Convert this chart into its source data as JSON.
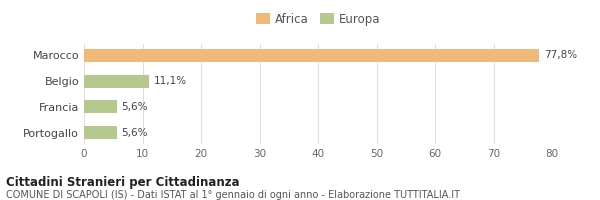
{
  "categories": [
    "Portogallo",
    "Francia",
    "Belgio",
    "Marocco"
  ],
  "values": [
    5.6,
    5.6,
    11.1,
    77.8
  ],
  "colors": [
    "#b5c98e",
    "#b5c98e",
    "#b5c98e",
    "#f0b97a"
  ],
  "labels": [
    "5,6%",
    "5,6%",
    "11,1%",
    "77,8%"
  ],
  "legend": [
    {
      "label": "Africa",
      "color": "#f0b97a"
    },
    {
      "label": "Europa",
      "color": "#b5c98e"
    }
  ],
  "xlim": [
    0,
    80
  ],
  "xticks": [
    0,
    10,
    20,
    30,
    40,
    50,
    60,
    70,
    80
  ],
  "title_bold": "Cittadini Stranieri per Cittadinanza",
  "subtitle": "COMUNE DI SCAPOLI (IS) - Dati ISTAT al 1° gennaio di ogni anno - Elaborazione TUTTITALIA.IT",
  "background_color": "#ffffff",
  "bar_height": 0.5
}
